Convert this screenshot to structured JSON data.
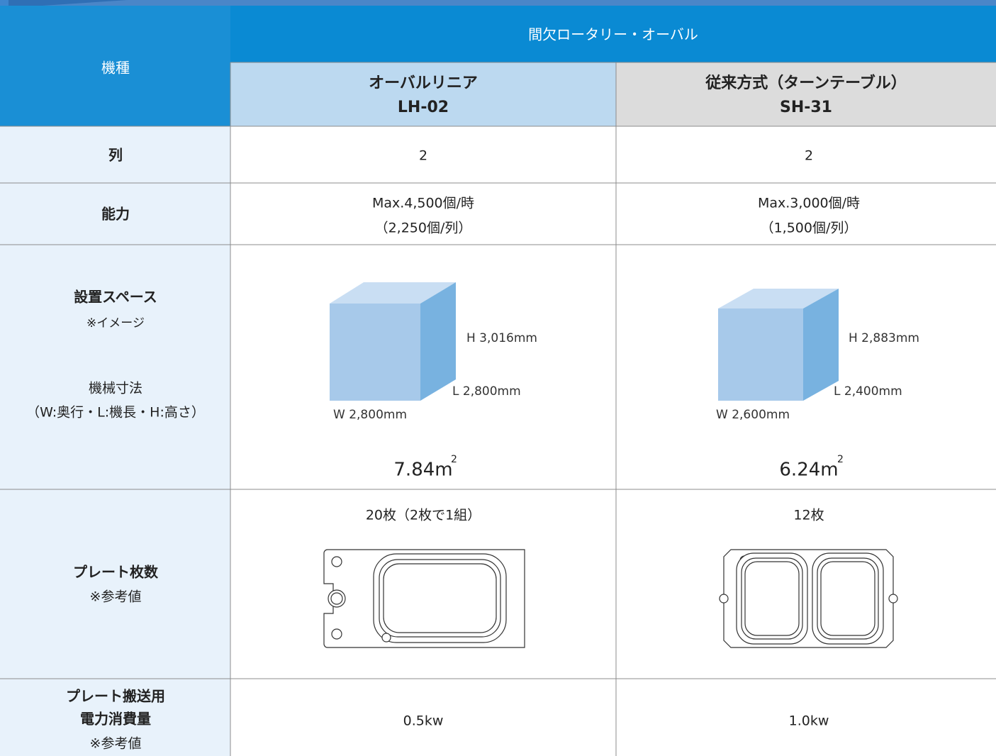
{
  "header": {
    "corner": "機種",
    "group": "間欠ロータリー・オーバル",
    "columns": [
      {
        "name": "オーバルリニア",
        "model": "LH-02"
      },
      {
        "name": "従来方式（ターンテーブル）",
        "model": "SH-31"
      }
    ]
  },
  "rows": [
    {
      "label": [
        "列"
      ],
      "values": [
        "2",
        "2"
      ]
    },
    {
      "label": [
        "能力"
      ],
      "values": [
        [
          "Max.4,500個/時",
          "（2,250個/列）"
        ],
        [
          "Max.3,000個/時",
          "（1,500個/列）"
        ]
      ]
    },
    {
      "label": [
        "設置スペース",
        "※イメージ",
        "機械寸法",
        "（W:奥行・L:機長・H:高さ）"
      ],
      "cells": [
        {
          "h": "H 3,016mm",
          "l": "L 2,800mm",
          "w": "W 2,800mm",
          "area": "7.84m",
          "area_exp": "2"
        },
        {
          "h": "H 2,883mm",
          "l": "L 2,400mm",
          "w": "W 2,600mm",
          "area": "6.24m",
          "area_exp": "2"
        }
      ]
    },
    {
      "label": [
        "プレート枚数",
        "※参考値"
      ],
      "values": [
        "20枚（2枚で1組）",
        "12枚"
      ]
    },
    {
      "label": [
        "プレート搬送用",
        "電力消費量",
        "※参考値"
      ],
      "values": [
        "0.5kw",
        "1.0kw"
      ]
    }
  ]
}
